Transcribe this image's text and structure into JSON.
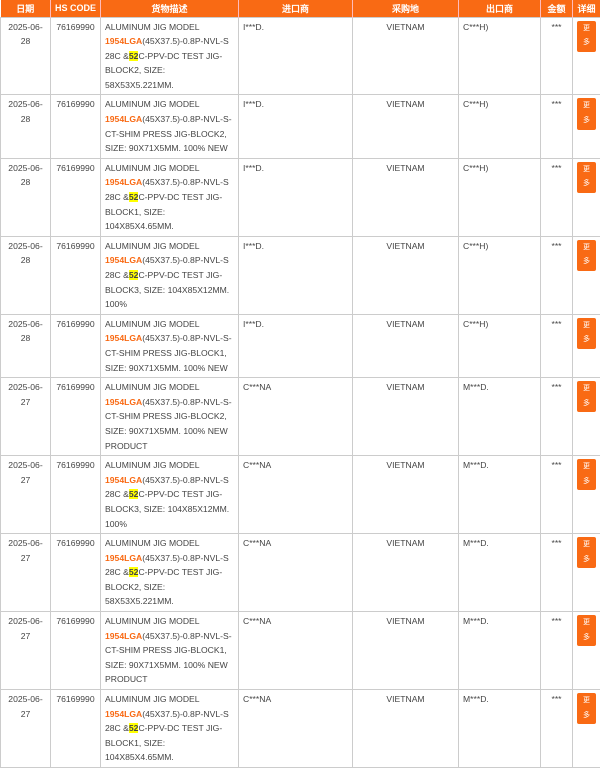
{
  "accent": "#f96a14",
  "headers": [
    "日期",
    "HS CODE",
    "货物描述",
    "进口商",
    "采购地",
    "出口商",
    "金额",
    "详细"
  ],
  "more_label": "更多",
  "rows": [
    {
      "date": "2025-06-28",
      "hs": "76169990",
      "pre": "ALUMINUM JIG MODEL ",
      "model": "1954LGA",
      "mid": "(45X37.5)-0.8P-NVL-S 28C &",
      "hl": "52",
      "post": "C-PPV-DC TEST JIG-BLOCK2, SIZE: 58X53X5.221MM.",
      "importer": "I***D.",
      "origin": "VIETNAM",
      "exporter": "C***H)",
      "amount": "***"
    },
    {
      "date": "2025-06-28",
      "hs": "76169990",
      "pre": "ALUMINUM JIG MODEL ",
      "model": "1954LGA",
      "mid": "(45X37.5)-0.8P-NVL-S-CT-SHIM PRESS JIG-BLOCK2, SIZE: 90X71X5MM. 100% NEW",
      "hl": "",
      "post": "",
      "importer": "I***D.",
      "origin": "VIETNAM",
      "exporter": "C***H)",
      "amount": "***"
    },
    {
      "date": "2025-06-28",
      "hs": "76169990",
      "pre": "ALUMINUM JIG MODEL ",
      "model": "1954LGA",
      "mid": "(45X37.5)-0.8P-NVL-S 28C &",
      "hl": "52",
      "post": "C-PPV-DC TEST JIG-BLOCK1, SIZE: 104X85X4.65MM.",
      "importer": "I***D.",
      "origin": "VIETNAM",
      "exporter": "C***H)",
      "amount": "***"
    },
    {
      "date": "2025-06-28",
      "hs": "76169990",
      "pre": "ALUMINUM JIG MODEL ",
      "model": "1954LGA",
      "mid": "(45X37.5)-0.8P-NVL-S 28C &",
      "hl": "52",
      "post": "C-PPV-DC TEST JIG-BLOCK3, SIZE: 104X85X12MM. 100%",
      "importer": "I***D.",
      "origin": "VIETNAM",
      "exporter": "C***H)",
      "amount": "***"
    },
    {
      "date": "2025-06-28",
      "hs": "76169990",
      "pre": "ALUMINUM JIG MODEL ",
      "model": "1954LGA",
      "mid": "(45X37.5)-0.8P-NVL-S-CT-SHIM PRESS JIG-BLOCK1, SIZE: 90X71X5MM. 100% NEW",
      "hl": "",
      "post": "",
      "importer": "I***D.",
      "origin": "VIETNAM",
      "exporter": "C***H)",
      "amount": "***"
    },
    {
      "date": "2025-06-27",
      "hs": "76169990",
      "pre": "ALUMINUM JIG MODEL ",
      "model": "1954LGA",
      "mid": "(45X37.5)-0.8P-NVL-S-CT-SHIM PRESS JIG-BLOCK2, SIZE: 90X71X5MM. 100% NEW PRODUCT",
      "hl": "",
      "post": "",
      "importer": "C***NA",
      "origin": "VIETNAM",
      "exporter": "M***D.",
      "amount": "***"
    },
    {
      "date": "2025-06-27",
      "hs": "76169990",
      "pre": "ALUMINUM JIG MODEL ",
      "model": "1954LGA",
      "mid": "(45X37.5)-0.8P-NVL-S 28C &",
      "hl": "52",
      "post": "C-PPV-DC TEST JIG-BLOCK3, SIZE: 104X85X12MM. 100%",
      "importer": "C***NA",
      "origin": "VIETNAM",
      "exporter": "M***D.",
      "amount": "***"
    },
    {
      "date": "2025-06-27",
      "hs": "76169990",
      "pre": "ALUMINUM JIG MODEL ",
      "model": "1954LGA",
      "mid": "(45X37.5)-0.8P-NVL-S 28C &",
      "hl": "52",
      "post": "C-PPV-DC TEST JIG-BLOCK2, SIZE: 58X53X5.221MM.",
      "importer": "C***NA",
      "origin": "VIETNAM",
      "exporter": "M***D.",
      "amount": "***"
    },
    {
      "date": "2025-06-27",
      "hs": "76169990",
      "pre": "ALUMINUM JIG MODEL ",
      "model": "1954LGA",
      "mid": "(45X37.5)-0.8P-NVL-S-CT-SHIM PRESS JIG-BLOCK1, SIZE: 90X71X5MM. 100% NEW PRODUCT",
      "hl": "",
      "post": "",
      "importer": "C***NA",
      "origin": "VIETNAM",
      "exporter": "M***D.",
      "amount": "***"
    },
    {
      "date": "2025-06-27",
      "hs": "76169990",
      "pre": "ALUMINUM JIG MODEL ",
      "model": "1954LGA",
      "mid": "(45X37.5)-0.8P-NVL-S 28C &",
      "hl": "52",
      "post": "C-PPV-DC TEST JIG-BLOCK1, SIZE: 104X85X4.65MM.",
      "importer": "C***NA",
      "origin": "VIETNAM",
      "exporter": "M***D.",
      "amount": "***"
    }
  ]
}
